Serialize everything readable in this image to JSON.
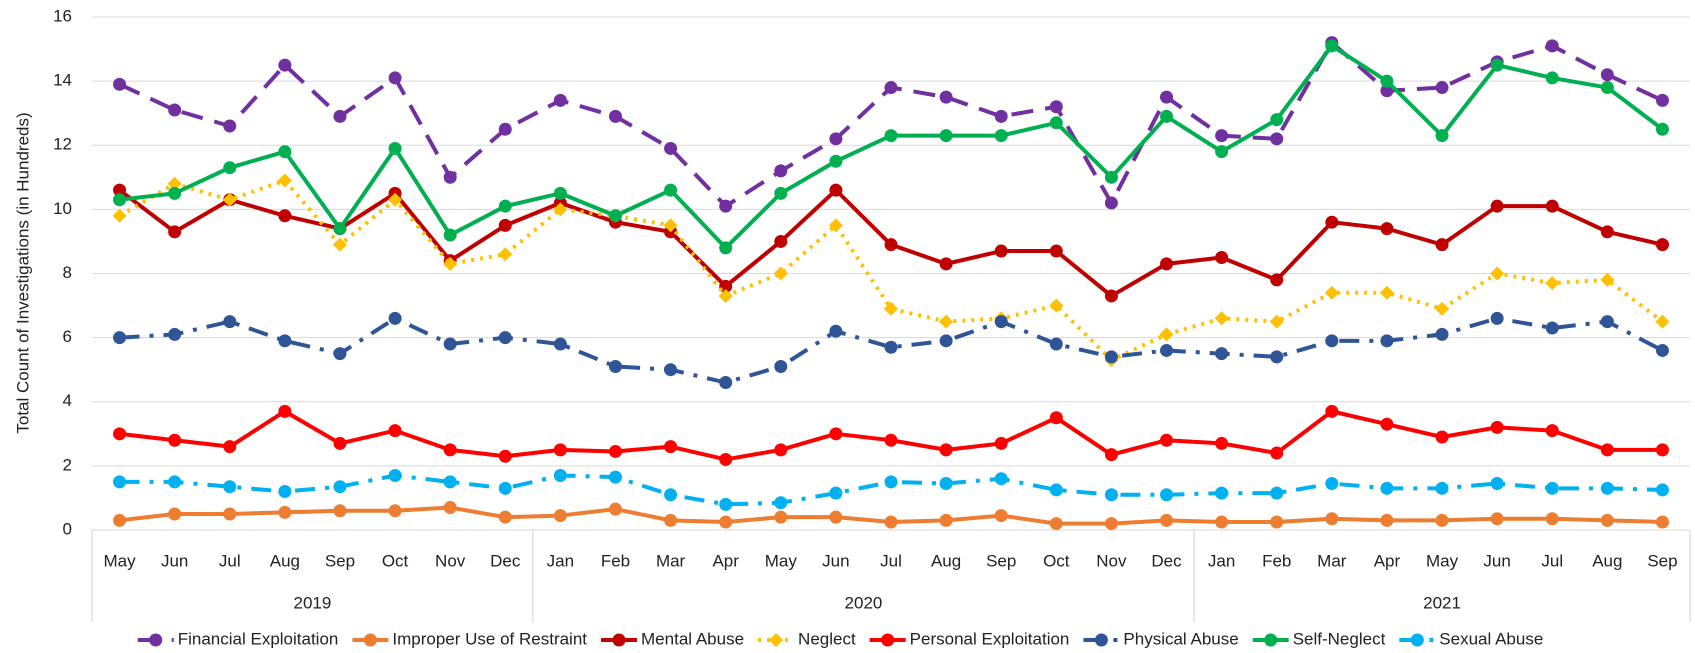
{
  "chart_data": {
    "type": "line",
    "ylabel": "Total Count of  Investigations (in Hundreds)",
    "categories": [
      "May",
      "Jun",
      "Jul",
      "Aug",
      "Sep",
      "Oct",
      "Nov",
      "Dec",
      "Jan",
      "Feb",
      "Mar",
      "Apr",
      "May",
      "Jun",
      "Jul",
      "Aug",
      "Sep",
      "Oct",
      "Nov",
      "Dec",
      "Jan",
      "Feb",
      "Mar",
      "Apr",
      "May",
      "Jun",
      "Jul",
      "Aug",
      "Sep"
    ],
    "groups": [
      {
        "label": "2019",
        "count": 8
      },
      {
        "label": "2020",
        "count": 12
      },
      {
        "label": "2021",
        "count": 9
      }
    ],
    "ylim": [
      0,
      16
    ],
    "yticks": [
      0,
      2,
      4,
      6,
      8,
      10,
      12,
      14,
      16
    ],
    "grid": true,
    "legend": "bottom",
    "series": [
      {
        "name": "Financial Exploitation",
        "color": "#7030a0",
        "dash": "dash",
        "values": [
          13.9,
          13.1,
          12.6,
          14.5,
          12.9,
          14.1,
          11.0,
          12.5,
          13.4,
          12.9,
          11.9,
          10.1,
          11.2,
          12.2,
          13.8,
          13.5,
          12.9,
          13.2,
          10.2,
          13.5,
          12.3,
          12.2,
          15.2,
          13.7,
          13.8,
          14.6,
          15.1,
          14.2,
          13.4
        ]
      },
      {
        "name": "Improper Use of Restraint",
        "color": "#ed7d31",
        "dash": "solid",
        "values": [
          0.3,
          0.5,
          0.5,
          0.55,
          0.6,
          0.6,
          0.7,
          0.4,
          0.45,
          0.65,
          0.3,
          0.25,
          0.4,
          0.4,
          0.25,
          0.3,
          0.45,
          0.2,
          0.2,
          0.3,
          0.25,
          0.25,
          0.35,
          0.3,
          0.3,
          0.35,
          0.35,
          0.3,
          0.25
        ]
      },
      {
        "name": "Mental Abuse",
        "color": "#c00000",
        "dash": "solid",
        "values": [
          10.6,
          9.3,
          10.3,
          9.8,
          9.4,
          10.5,
          8.4,
          9.5,
          10.2,
          9.6,
          9.3,
          7.6,
          9.0,
          10.6,
          8.9,
          8.3,
          8.7,
          8.7,
          7.3,
          8.3,
          8.5,
          7.8,
          9.6,
          9.4,
          8.9,
          10.1,
          10.1,
          9.3,
          8.9
        ]
      },
      {
        "name": "Neglect",
        "color": "#ffc000",
        "dash": "dot",
        "values": [
          9.8,
          10.8,
          10.3,
          10.9,
          8.9,
          10.3,
          8.3,
          8.6,
          10.0,
          9.8,
          9.5,
          7.3,
          8.0,
          9.5,
          6.9,
          6.5,
          6.6,
          7.0,
          5.3,
          6.1,
          6.6,
          6.5,
          7.4,
          7.4,
          6.9,
          8.0,
          7.7,
          7.8,
          6.5
        ]
      },
      {
        "name": "Personal Exploitation",
        "color": "#ff0000",
        "dash": "solid",
        "values": [
          3.0,
          2.8,
          2.6,
          3.7,
          2.7,
          3.1,
          2.5,
          2.3,
          2.5,
          2.45,
          2.6,
          2.2,
          2.5,
          3.0,
          2.8,
          2.5,
          2.7,
          3.5,
          2.35,
          2.8,
          2.7,
          2.4,
          3.7,
          3.3,
          2.9,
          3.2,
          3.1,
          2.5,
          2.5
        ]
      },
      {
        "name": "Physical Abuse",
        "color": "#2f5597",
        "dash": "dashdot",
        "values": [
          6.0,
          6.1,
          6.5,
          5.9,
          5.5,
          6.6,
          5.8,
          6.0,
          5.8,
          5.1,
          5.0,
          4.6,
          5.1,
          6.2,
          5.7,
          5.9,
          6.5,
          5.8,
          5.4,
          5.6,
          5.5,
          5.4,
          5.9,
          5.9,
          6.1,
          6.6,
          6.3,
          6.5,
          5.6
        ]
      },
      {
        "name": "Self-Neglect",
        "color": "#00b050",
        "dash": "solid",
        "values": [
          10.3,
          10.5,
          11.3,
          11.8,
          9.4,
          11.9,
          9.2,
          10.1,
          10.5,
          9.8,
          10.6,
          8.8,
          10.5,
          11.5,
          12.3,
          12.3,
          12.3,
          12.7,
          11.0,
          12.9,
          11.8,
          12.8,
          15.1,
          14.0,
          12.3,
          14.5,
          14.1,
          13.8,
          12.5
        ]
      },
      {
        "name": "Sexual Abuse",
        "color": "#00b0f0",
        "dash": "dashdot",
        "values": [
          1.5,
          1.5,
          1.35,
          1.2,
          1.35,
          1.7,
          1.5,
          1.3,
          1.7,
          1.65,
          1.1,
          0.8,
          0.85,
          1.15,
          1.5,
          1.45,
          1.6,
          1.25,
          1.1,
          1.1,
          1.15,
          1.15,
          1.45,
          1.3,
          1.3,
          1.45,
          1.3,
          1.3,
          1.25
        ]
      }
    ]
  }
}
